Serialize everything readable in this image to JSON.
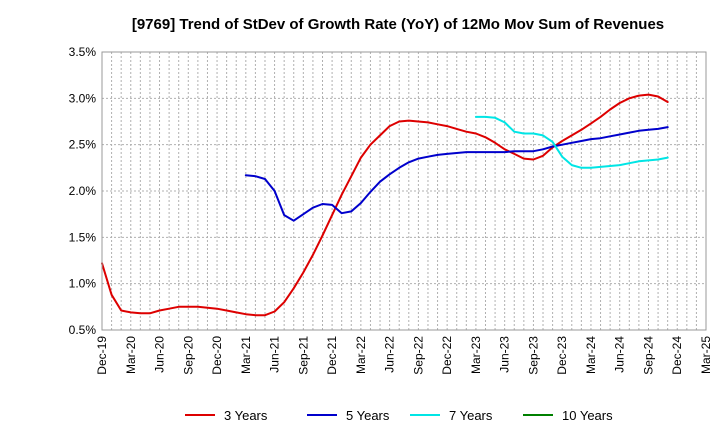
{
  "chart_data": {
    "type": "line",
    "title": "[9769]  Trend of StDev of Growth Rate (YoY) of 12Mo Mov Sum of Revenues",
    "xlabel": "",
    "ylabel": "",
    "x_categories": [
      "Dec-19",
      "Mar-20",
      "Jun-20",
      "Sep-20",
      "Dec-20",
      "Mar-21",
      "Jun-21",
      "Sep-21",
      "Dec-21",
      "Mar-22",
      "Jun-22",
      "Sep-22",
      "Dec-22",
      "Mar-23",
      "Jun-23",
      "Sep-23",
      "Dec-23",
      "Mar-24",
      "Jun-24",
      "Sep-24",
      "Dec-24",
      "Mar-25"
    ],
    "y_ticks": [
      0.5,
      1.0,
      1.5,
      2.0,
      2.5,
      3.0,
      3.5
    ],
    "y_tick_labels": [
      "0.5%",
      "1.0%",
      "1.5%",
      "2.0%",
      "2.5%",
      "3.0%",
      "3.5%"
    ],
    "ylim": [
      0.5,
      3.5
    ],
    "grid": true,
    "legend_position": "bottom",
    "series": [
      {
        "name": "3 Years",
        "color": "#dd0000",
        "points": [
          [
            0,
            1.22
          ],
          [
            1,
            0.88
          ],
          [
            2,
            0.71
          ],
          [
            3,
            0.69
          ],
          [
            4,
            0.68
          ],
          [
            5,
            0.68
          ],
          [
            6,
            0.71
          ],
          [
            7,
            0.73
          ],
          [
            8,
            0.75
          ],
          [
            9,
            0.75
          ],
          [
            10,
            0.75
          ],
          [
            11,
            0.74
          ],
          [
            12,
            0.73
          ],
          [
            13,
            0.71
          ],
          [
            14,
            0.69
          ],
          [
            15,
            0.67
          ],
          [
            16,
            0.66
          ],
          [
            17,
            0.66
          ],
          [
            18,
            0.7
          ],
          [
            19,
            0.8
          ],
          [
            20,
            0.95
          ],
          [
            21,
            1.12
          ],
          [
            22,
            1.31
          ],
          [
            23,
            1.52
          ],
          [
            24,
            1.74
          ],
          [
            25,
            1.96
          ],
          [
            26,
            2.16
          ],
          [
            27,
            2.36
          ],
          [
            28,
            2.5
          ],
          [
            29,
            2.6
          ],
          [
            30,
            2.7
          ],
          [
            31,
            2.75
          ],
          [
            32,
            2.76
          ],
          [
            33,
            2.75
          ],
          [
            34,
            2.74
          ],
          [
            35,
            2.72
          ],
          [
            36,
            2.7
          ],
          [
            37,
            2.67
          ],
          [
            38,
            2.64
          ],
          [
            39,
            2.62
          ],
          [
            40,
            2.58
          ],
          [
            41,
            2.52
          ],
          [
            42,
            2.45
          ],
          [
            43,
            2.4
          ],
          [
            44,
            2.35
          ],
          [
            45,
            2.34
          ],
          [
            46,
            2.38
          ],
          [
            47,
            2.47
          ],
          [
            48,
            2.54
          ],
          [
            49,
            2.6
          ],
          [
            50,
            2.66
          ],
          [
            51,
            2.73
          ],
          [
            52,
            2.8
          ],
          [
            53,
            2.88
          ],
          [
            54,
            2.95
          ],
          [
            55,
            3.0
          ],
          [
            56,
            3.03
          ],
          [
            57,
            3.04
          ],
          [
            58,
            3.02
          ],
          [
            59,
            2.96
          ]
        ]
      },
      {
        "name": "5 Years",
        "color": "#0000cc",
        "points": [
          [
            15,
            2.17
          ],
          [
            16,
            2.16
          ],
          [
            17,
            2.13
          ],
          [
            18,
            2.0
          ],
          [
            19,
            1.74
          ],
          [
            20,
            1.68
          ],
          [
            21,
            1.75
          ],
          [
            22,
            1.82
          ],
          [
            23,
            1.86
          ],
          [
            24,
            1.85
          ],
          [
            25,
            1.76
          ],
          [
            26,
            1.78
          ],
          [
            27,
            1.87
          ],
          [
            28,
            1.99
          ],
          [
            29,
            2.1
          ],
          [
            30,
            2.18
          ],
          [
            31,
            2.25
          ],
          [
            32,
            2.31
          ],
          [
            33,
            2.35
          ],
          [
            34,
            2.37
          ],
          [
            35,
            2.39
          ],
          [
            36,
            2.4
          ],
          [
            37,
            2.41
          ],
          [
            38,
            2.42
          ],
          [
            39,
            2.42
          ],
          [
            40,
            2.42
          ],
          [
            41,
            2.42
          ],
          [
            42,
            2.42
          ],
          [
            43,
            2.43
          ],
          [
            44,
            2.43
          ],
          [
            45,
            2.43
          ],
          [
            46,
            2.45
          ],
          [
            47,
            2.48
          ],
          [
            48,
            2.5
          ],
          [
            49,
            2.52
          ],
          [
            50,
            2.54
          ],
          [
            51,
            2.56
          ],
          [
            52,
            2.57
          ],
          [
            53,
            2.59
          ],
          [
            54,
            2.61
          ],
          [
            55,
            2.63
          ],
          [
            56,
            2.65
          ],
          [
            57,
            2.66
          ],
          [
            58,
            2.67
          ],
          [
            59,
            2.69
          ]
        ]
      },
      {
        "name": "7 Years",
        "color": "#00e5e5",
        "points": [
          [
            39,
            2.8
          ],
          [
            40,
            2.8
          ],
          [
            41,
            2.79
          ],
          [
            42,
            2.74
          ],
          [
            43,
            2.64
          ],
          [
            44,
            2.62
          ],
          [
            45,
            2.62
          ],
          [
            46,
            2.6
          ],
          [
            47,
            2.53
          ],
          [
            48,
            2.37
          ],
          [
            49,
            2.28
          ],
          [
            50,
            2.25
          ],
          [
            51,
            2.25
          ],
          [
            52,
            2.26
          ],
          [
            53,
            2.27
          ],
          [
            54,
            2.28
          ],
          [
            55,
            2.3
          ],
          [
            56,
            2.32
          ],
          [
            57,
            2.33
          ],
          [
            58,
            2.34
          ],
          [
            59,
            2.36
          ]
        ]
      },
      {
        "name": "10 Years",
        "color": "#008000",
        "points": []
      }
    ]
  }
}
